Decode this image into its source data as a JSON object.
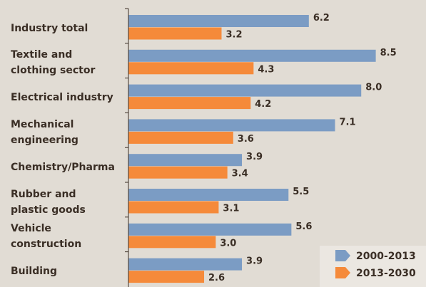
{
  "chart_data": {
    "type": "hbar",
    "categories": [
      "Industry total",
      "Textile and\nclothing sector",
      "Electrical industry",
      "Mechanical\nengineering",
      "Chemistry/Pharma",
      "Rubber and\nplastic goods",
      "Vehicle\nconstruction",
      "Building"
    ],
    "series": [
      {
        "name": "2000-2013",
        "color": "#7b9cc4",
        "values": [
          6.2,
          8.5,
          8.0,
          7.1,
          3.9,
          5.5,
          5.6,
          3.9
        ],
        "value_labels": [
          "6.2",
          "8.5",
          "8.0",
          "7.1",
          "3.9",
          "5.5",
          "5.6",
          "3.9"
        ]
      },
      {
        "name": "2013-2030",
        "color": "#f58a3a",
        "values": [
          3.2,
          4.3,
          4.2,
          3.6,
          3.4,
          3.1,
          3.0,
          2.6
        ],
        "value_labels": [
          "3.2",
          "4.3",
          "4.2",
          "3.6",
          "3.4",
          "3.1",
          "3.0",
          "2.6"
        ]
      }
    ],
    "xlim": [
      0,
      9
    ],
    "legend": "lower right"
  }
}
